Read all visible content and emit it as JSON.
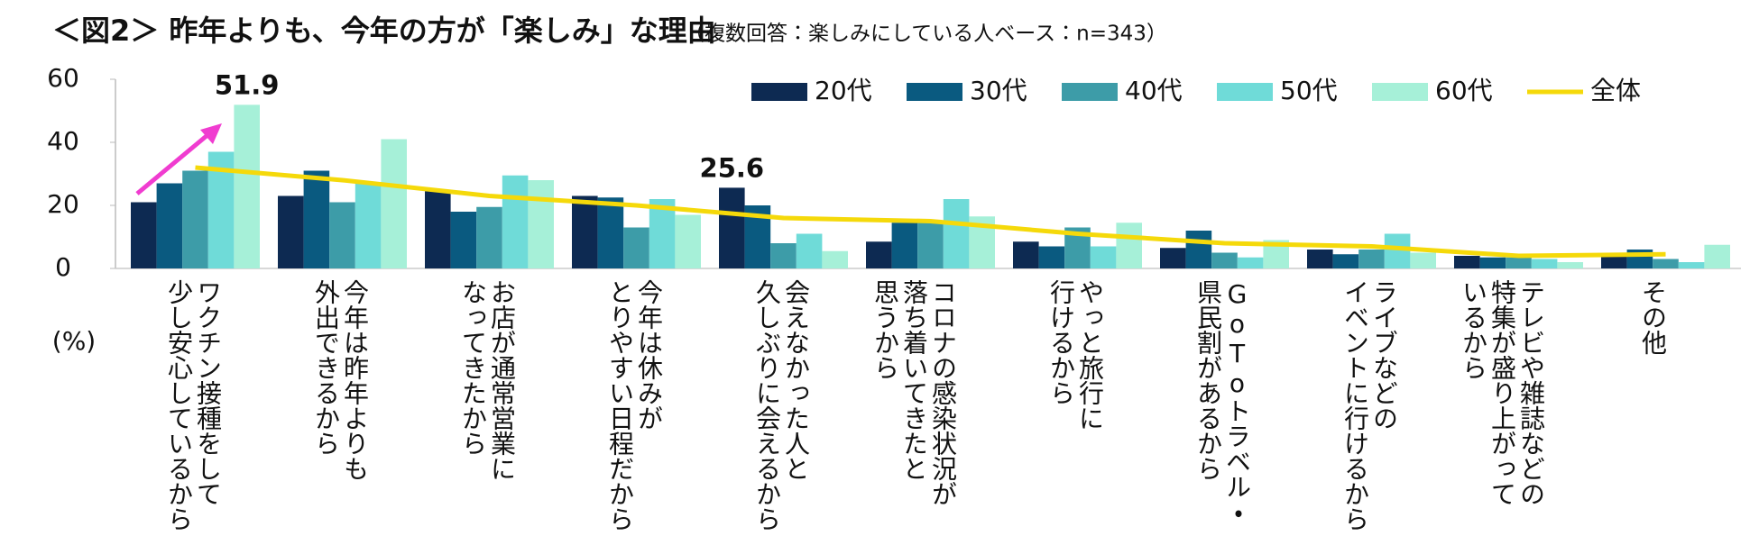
{
  "chart_data": {
    "type": "bar",
    "title": "＜図2＞ 昨年よりも、今年の方が「楽しみ」な理由",
    "subtitle": "（複数回答：楽しみにしている人ベース：n=343）",
    "y_axis_label": "(%)",
    "categories": [
      [
        "ワクチン接種をして",
        "少し安心しているから"
      ],
      [
        "今年は昨年よりも",
        "外出できるから"
      ],
      [
        "お店が通常営業に",
        "なってきたから"
      ],
      [
        "今年は休みが",
        "とりやすい日程だから"
      ],
      [
        "会えなかった人と",
        "久しぶりに会えるから"
      ],
      [
        "コロナの感染状況が",
        "落ち着いてきたと",
        "思うから"
      ],
      [
        "やっと旅行に",
        "行けるから"
      ],
      [
        "GoTоトラベル・",
        "県民割があるから"
      ],
      [
        "ライブなどの",
        "イベントに行けるから"
      ],
      [
        "テレビや雑誌などの",
        "特集が盛り上がって",
        "いるから"
      ],
      [
        "その他"
      ]
    ],
    "series": [
      {
        "name": "20代",
        "color": "#0d2a52",
        "values": [
          21,
          23,
          24.5,
          23,
          25.6,
          8.5,
          8.5,
          6.5,
          6,
          4,
          4
        ]
      },
      {
        "name": "30代",
        "color": "#0a5a80",
        "values": [
          27,
          31,
          18,
          22.5,
          20,
          14.5,
          7,
          12,
          4.5,
          3.5,
          6
        ]
      },
      {
        "name": "40代",
        "color": "#3d9ca8",
        "values": [
          31,
          21,
          19.5,
          13,
          8,
          14.5,
          13,
          5,
          6,
          3.5,
          3
        ]
      },
      {
        "name": "50代",
        "color": "#6fdbd8",
        "values": [
          37,
          27,
          29.5,
          22,
          11,
          22,
          7,
          3.5,
          11,
          3,
          2
        ]
      },
      {
        "name": "60代",
        "color": "#a6f0d8",
        "values": [
          51.9,
          41,
          28,
          17,
          5.5,
          16.5,
          14.5,
          9,
          5,
          2,
          7.5
        ]
      },
      {
        "name": "全体",
        "color": "#f5d90a",
        "type": "line",
        "values": [
          32,
          28,
          23,
          20,
          16,
          15,
          11,
          8,
          7,
          4,
          4.5
        ]
      }
    ],
    "ylim": [
      0,
      60
    ],
    "yticks": [
      0,
      20,
      40,
      60
    ],
    "grid": false,
    "highlights": [
      {
        "series": 4,
        "index": 0,
        "color": "#2ecf9a"
      },
      {
        "series": 0,
        "index": 4,
        "color": "#0d2a52"
      }
    ]
  }
}
